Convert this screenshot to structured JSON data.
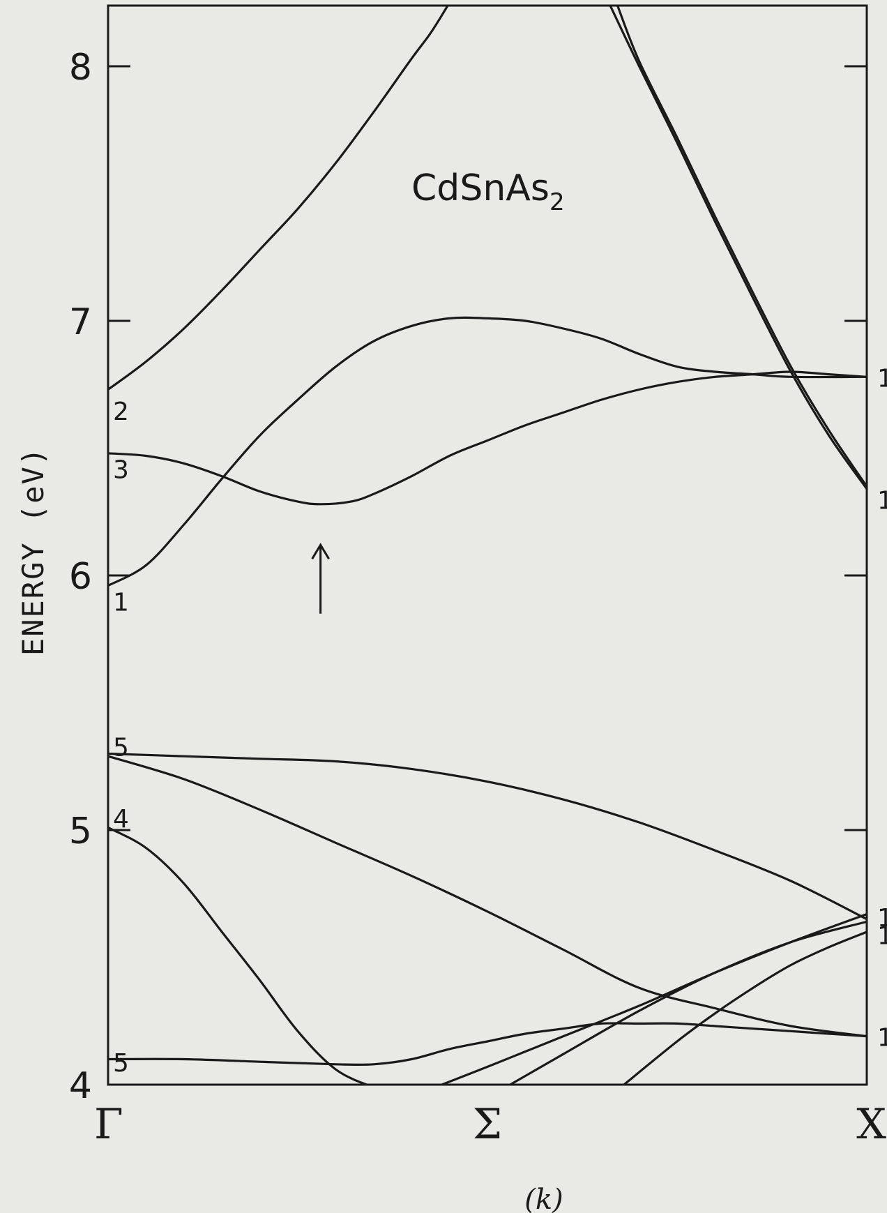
{
  "chart_data": {
    "type": "line",
    "title": "CdSnAs",
    "title_subscript": "2",
    "ylabel": "ENERGY (eV)",
    "xlabel": "(k)",
    "ylim": [
      4,
      8.25
    ],
    "yticks": [
      4,
      5,
      6,
      7,
      8
    ],
    "yticklabels": [
      "4",
      "5",
      "6",
      "7",
      "8"
    ],
    "k_points": [
      {
        "label": "Γ",
        "x": 0
      },
      {
        "label": "Σ",
        "x": 0.5
      },
      {
        "label": "X",
        "x": 1
      }
    ],
    "band_labels": [
      {
        "text": "2",
        "energy": 6.65
      },
      {
        "text": "3",
        "energy": 6.42
      },
      {
        "text": "1",
        "energy": 5.9
      },
      {
        "text": "5",
        "energy": 5.33
      },
      {
        "text": "4",
        "energy": 5.05
      },
      {
        "text": "5",
        "energy": 4.09
      }
    ],
    "right_labels": [
      {
        "text": "1",
        "energy": 6.78
      },
      {
        "text": "1",
        "energy": 6.3
      },
      {
        "text": "1",
        "energy": 4.66
      },
      {
        "text": "1",
        "energy": 4.59
      },
      {
        "text": "1",
        "energy": 4.19
      }
    ],
    "arrow": {
      "x": 0.28,
      "energy_from": 5.85,
      "energy_to": 6.12
    },
    "series": [
      {
        "x": [
          0,
          0.05,
          0.1,
          0.15,
          0.2,
          0.25,
          0.3,
          0.35,
          0.4,
          0.425,
          0.45,
          0.5
        ],
        "values": [
          6.73,
          6.84,
          6.97,
          7.12,
          7.28,
          7.44,
          7.62,
          7.82,
          8.03,
          8.13,
          8.25,
          8.5
        ]
      },
      {
        "x": [
          0.66,
          0.7,
          0.75,
          0.8,
          0.85,
          0.9,
          0.95,
          1.0
        ],
        "values": [
          8.25,
          8.0,
          7.7,
          7.39,
          7.09,
          6.8,
          6.55,
          6.34
        ]
      },
      {
        "x": [
          0.67,
          0.7,
          0.75,
          0.8,
          0.85,
          0.9,
          0.95,
          1.0
        ],
        "values": [
          8.25,
          8.02,
          7.72,
          7.41,
          7.11,
          6.82,
          6.57,
          6.35
        ]
      },
      {
        "x": [
          0,
          0.05,
          0.1,
          0.15,
          0.2,
          0.25,
          0.3,
          0.35,
          0.4,
          0.45,
          0.5,
          0.55,
          0.6,
          0.65,
          0.7,
          0.75,
          0.8,
          0.85,
          0.9,
          1.0
        ],
        "values": [
          5.96,
          6.04,
          6.2,
          6.38,
          6.55,
          6.69,
          6.82,
          6.92,
          6.98,
          7.01,
          7.01,
          7.0,
          6.97,
          6.93,
          6.87,
          6.82,
          6.8,
          6.79,
          6.78,
          6.78
        ]
      },
      {
        "x": [
          0,
          0.05,
          0.1,
          0.15,
          0.2,
          0.25,
          0.28,
          0.32,
          0.35,
          0.4,
          0.45,
          0.5,
          0.55,
          0.6,
          0.65,
          0.7,
          0.75,
          0.8,
          0.85,
          0.9,
          0.95,
          1.0
        ],
        "values": [
          6.48,
          6.47,
          6.44,
          6.39,
          6.33,
          6.29,
          6.28,
          6.29,
          6.32,
          6.39,
          6.47,
          6.53,
          6.59,
          6.64,
          6.69,
          6.73,
          6.76,
          6.78,
          6.79,
          6.8,
          6.79,
          6.78
        ]
      },
      {
        "x": [
          0,
          0.1,
          0.2,
          0.3,
          0.4,
          0.5,
          0.6,
          0.7,
          0.8,
          0.9,
          1.0
        ],
        "values": [
          5.3,
          5.29,
          5.28,
          5.27,
          5.24,
          5.19,
          5.12,
          5.03,
          4.92,
          4.8,
          4.65
        ]
      },
      {
        "x": [
          0,
          0.1,
          0.2,
          0.3,
          0.4,
          0.5,
          0.6,
          0.7,
          0.8,
          0.9,
          1.0
        ],
        "values": [
          5.29,
          5.2,
          5.08,
          4.95,
          4.82,
          4.68,
          4.53,
          4.38,
          4.3,
          4.23,
          4.19
        ]
      },
      {
        "x": [
          0,
          0.05,
          0.1,
          0.15,
          0.2,
          0.25,
          0.3,
          0.35,
          0.37
        ],
        "values": [
          5.01,
          4.93,
          4.79,
          4.6,
          4.41,
          4.21,
          4.06,
          3.99,
          3.98
        ]
      },
      {
        "x": [
          0,
          0.1,
          0.2,
          0.3,
          0.35,
          0.4,
          0.45,
          0.5,
          0.55,
          0.6,
          0.65,
          0.7,
          0.75,
          0.8,
          0.85,
          0.9,
          0.95,
          1.0
        ],
        "values": [
          4.1,
          4.1,
          4.09,
          4.08,
          4.08,
          4.1,
          4.14,
          4.17,
          4.2,
          4.22,
          4.24,
          4.24,
          4.24,
          4.23,
          4.22,
          4.21,
          4.2,
          4.19
        ]
      },
      {
        "x": [
          0.44,
          0.5,
          0.55,
          0.6,
          0.7,
          0.8,
          0.9,
          1.0
        ],
        "values": [
          4.0,
          4.07,
          4.13,
          4.19,
          4.31,
          4.44,
          4.56,
          4.67
        ]
      },
      {
        "x": [
          0.53,
          0.6,
          0.7,
          0.8,
          0.9,
          1.0
        ],
        "values": [
          4.0,
          4.12,
          4.29,
          4.44,
          4.56,
          4.64
        ]
      },
      {
        "x": [
          0.68,
          0.75,
          0.8,
          0.85,
          0.9,
          0.95,
          1.0
        ],
        "values": [
          4.0,
          4.17,
          4.28,
          4.38,
          4.47,
          4.54,
          4.6
        ]
      }
    ]
  }
}
